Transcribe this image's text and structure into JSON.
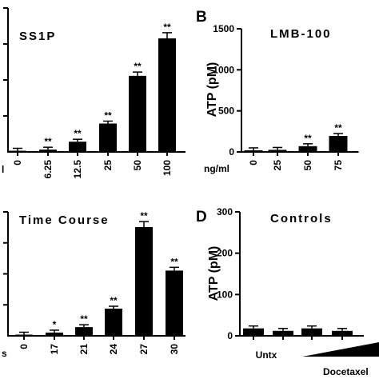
{
  "chart_data": [
    {
      "type": "bar",
      "title": "SS1P",
      "panel": "",
      "ylabel": "",
      "xlabel": "",
      "x_unit_label": "l",
      "ylim": null,
      "categories": [
        "0",
        "6.25",
        "12.5",
        "25",
        "50",
        "100"
      ],
      "values": [
        0.5,
        2,
        9,
        25,
        67,
        100
      ],
      "significance": [
        "",
        "**",
        "**",
        "**",
        "**",
        "**"
      ]
    },
    {
      "type": "bar",
      "title": "LMB-100",
      "panel": "B",
      "ylabel": "ATP (pM)",
      "xlabel": "",
      "x_unit_label": "ng/ml",
      "ylim": [
        0,
        1500
      ],
      "yticks": [
        0,
        500,
        1000,
        1500
      ],
      "categories": [
        "0",
        "25",
        "50",
        "75"
      ],
      "values": [
        20,
        25,
        70,
        195
      ],
      "significance": [
        "",
        "",
        "**",
        "**"
      ]
    },
    {
      "type": "bar",
      "title": "Time Course",
      "panel": "",
      "ylabel": "",
      "xlabel": "",
      "x_unit_label": "s",
      "ylim": null,
      "categories": [
        "0",
        "17",
        "21",
        "24",
        "27",
        "30"
      ],
      "values": [
        0.5,
        3,
        8,
        25,
        100,
        60
      ],
      "significance": [
        "",
        "*",
        "**",
        "**",
        "**",
        "**"
      ]
    },
    {
      "type": "bar",
      "title": "Controls",
      "panel": "D",
      "ylabel": "ATP (pM)",
      "xlabel": "",
      "ylim": [
        0,
        300
      ],
      "yticks": [
        0,
        100,
        200,
        300
      ],
      "categories": [
        "Untx",
        "",
        "",
        ""
      ],
      "values": [
        18,
        12,
        18,
        12
      ],
      "significance": [
        "",
        "",
        "",
        ""
      ],
      "gradient_label": "Docetaxel"
    }
  ]
}
